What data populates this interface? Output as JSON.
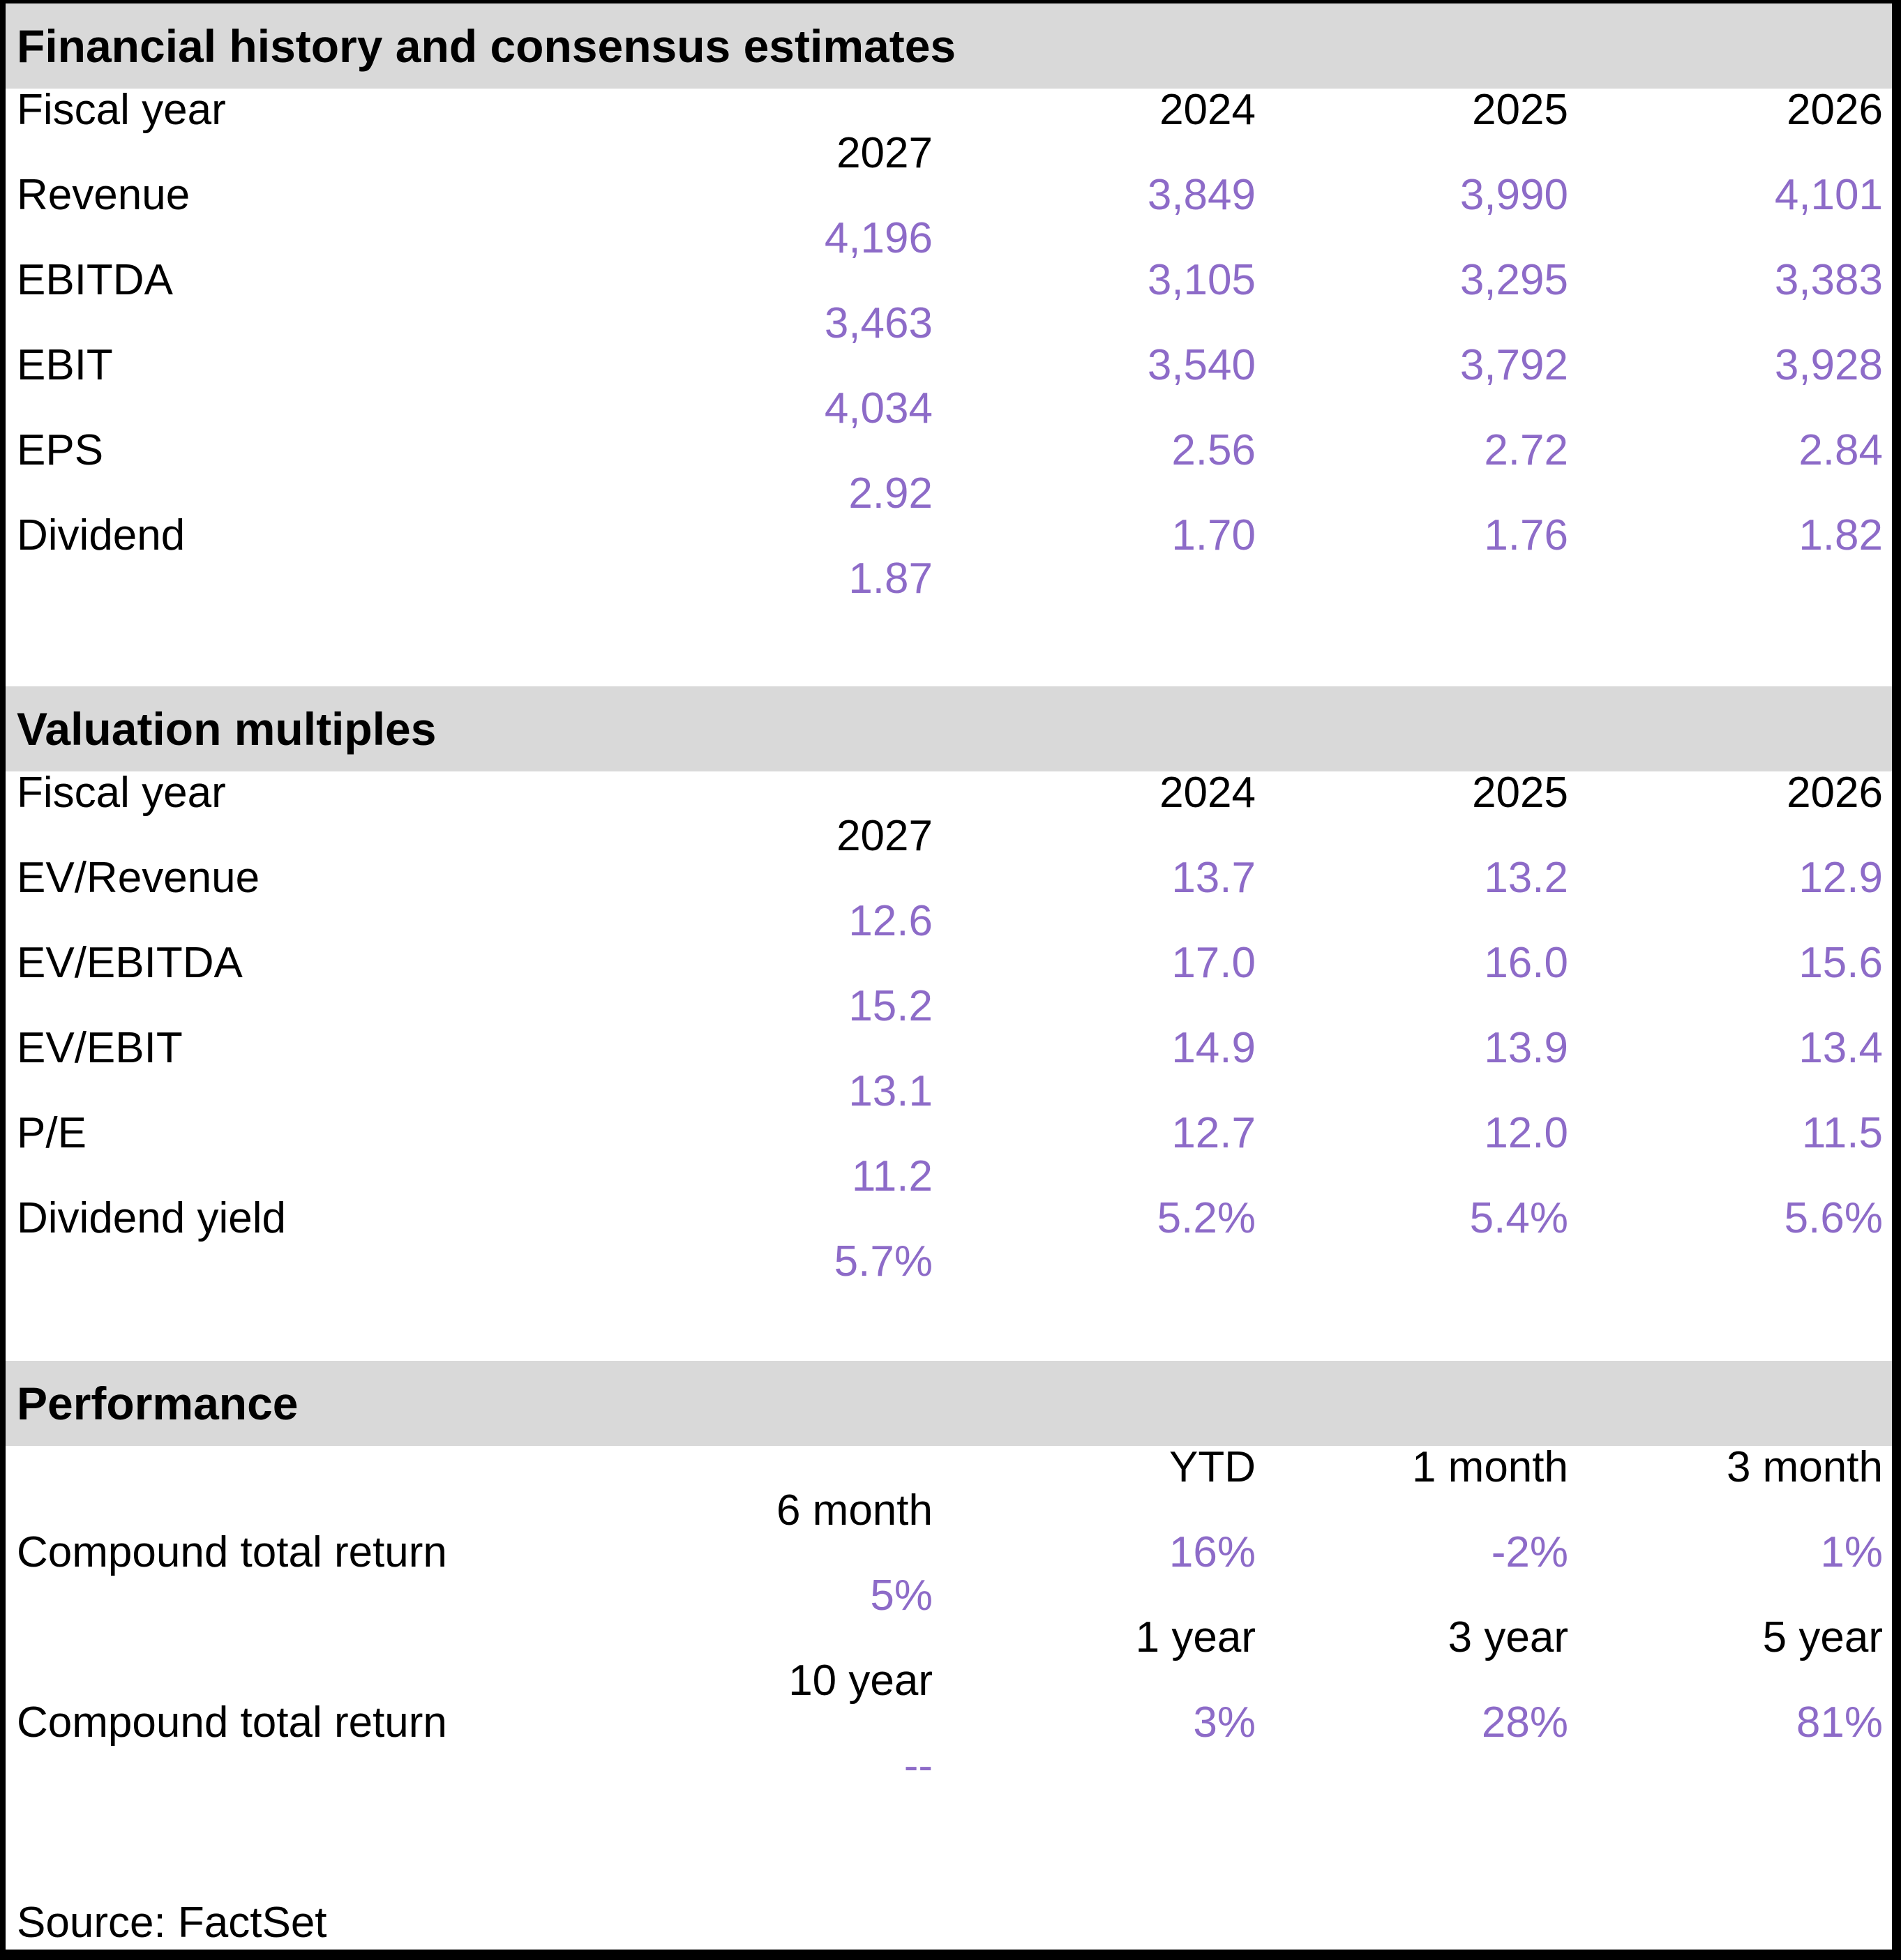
{
  "financial_history": {
    "title": "Financial history and consensus estimates",
    "header_label": "Fiscal year",
    "years": [
      "2024",
      "2025",
      "2026",
      "2027"
    ],
    "rows": [
      {
        "label": "Revenue",
        "values": [
          "3,849",
          "3,990",
          "4,101",
          "4,196"
        ]
      },
      {
        "label": "EBITDA",
        "values": [
          "3,105",
          "3,295",
          "3,383",
          "3,463"
        ]
      },
      {
        "label": "EBIT",
        "values": [
          "3,540",
          "3,792",
          "3,928",
          "4,034"
        ]
      },
      {
        "label": "EPS",
        "values": [
          "2.56",
          "2.72",
          "2.84",
          "2.92"
        ]
      },
      {
        "label": "Dividend",
        "values": [
          "1.70",
          "1.76",
          "1.82",
          "1.87"
        ]
      }
    ]
  },
  "valuation_multiples": {
    "title": "Valuation multiples",
    "header_label": "Fiscal year",
    "years": [
      "2024",
      "2025",
      "2026",
      "2027"
    ],
    "rows": [
      {
        "label": "EV/Revenue",
        "values": [
          "13.7",
          "13.2",
          "12.9",
          "12.6"
        ]
      },
      {
        "label": "EV/EBITDA",
        "values": [
          "17.0",
          "16.0",
          "15.6",
          "15.2"
        ]
      },
      {
        "label": "EV/EBIT",
        "values": [
          "14.9",
          "13.9",
          "13.4",
          "13.1"
        ]
      },
      {
        "label": "P/E",
        "values": [
          "12.7",
          "12.0",
          "11.5",
          "11.2"
        ]
      },
      {
        "label": "Dividend yield",
        "values": [
          "5.2%",
          "5.4%",
          "5.6%",
          "5.7%"
        ]
      }
    ]
  },
  "performance": {
    "title": "Performance",
    "short_term": {
      "periods": [
        "YTD",
        "1 month",
        "3 month",
        "6 month"
      ],
      "label": "Compound total return",
      "values": [
        "16%",
        "-2%",
        "1%",
        "5%"
      ]
    },
    "long_term": {
      "periods": [
        "1 year",
        "3 year",
        "5 year",
        "10 year"
      ],
      "label": "Compound total return",
      "values": [
        "3%",
        "28%",
        "81%",
        "--"
      ]
    }
  },
  "source": "Source: FactSet",
  "colors": {
    "value_purple": "#8d6bc8",
    "section_band_grey": "#d9d9d9",
    "text_black": "#000000"
  }
}
